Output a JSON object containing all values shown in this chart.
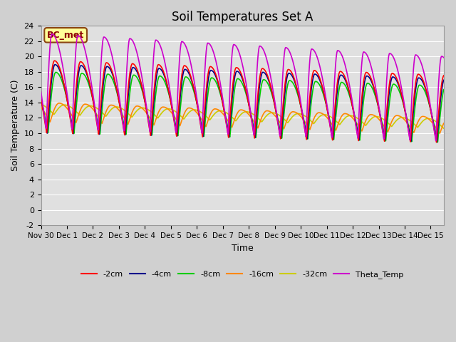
{
  "title": "Soil Temperatures Set A",
  "xlabel": "Time",
  "ylabel": "Soil Temperature (C)",
  "ylim": [
    -2,
    24
  ],
  "xlim": [
    0,
    15.5
  ],
  "fig_facecolor": "#d0d0d0",
  "ax_facecolor": "#e0e0e0",
  "annotation_text": "BC_met",
  "annotation_bg": "#ffff99",
  "annotation_border": "#8B4513",
  "annotation_text_color": "#8B0000",
  "series_colors": {
    "T2": "#ff0000",
    "T4": "#00008b",
    "T8": "#00cc00",
    "T16": "#ff8800",
    "T32": "#cccc00",
    "Theta": "#cc00cc"
  },
  "xtick_positions": [
    0,
    1,
    2,
    3,
    4,
    5,
    6,
    7,
    8,
    9,
    10,
    11,
    12,
    13,
    14,
    15
  ],
  "xtick_labels": [
    "Nov 30",
    "Dec 1",
    "Dec 2",
    "Dec 3",
    "Dec 4",
    "Dec 5",
    "Dec 6",
    "Dec 7",
    "Dec 8",
    "Dec 9",
    "Dec 10",
    "Dec 11",
    "Dec 12",
    "Dec 13",
    "Dec 14",
    "Dec 15"
  ],
  "ytick_positions": [
    -2,
    0,
    2,
    4,
    6,
    8,
    10,
    12,
    14,
    16,
    18,
    20,
    22,
    24
  ],
  "grid_color": "#ffffff",
  "n_points": 2000,
  "total_days": 15.5
}
